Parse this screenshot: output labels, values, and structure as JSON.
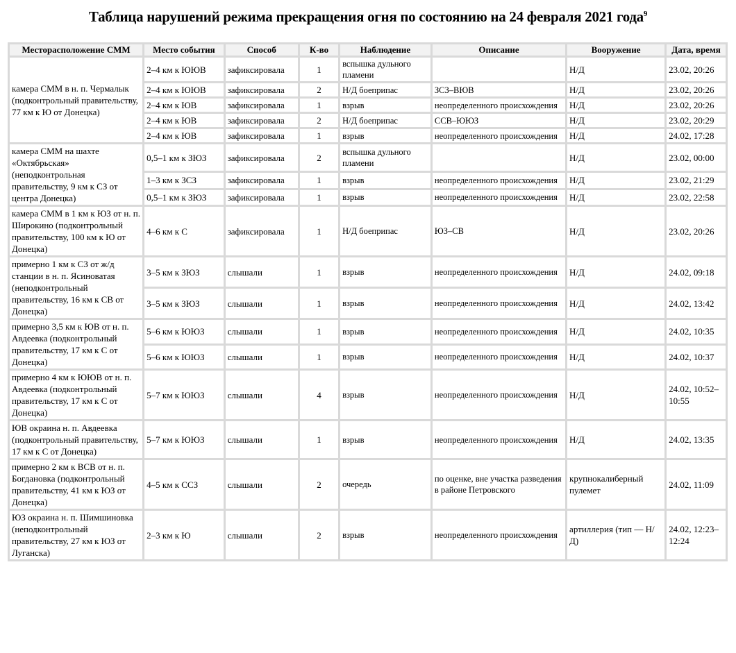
{
  "title": "Таблица нарушений режима прекращения огня по состоянию на 24 февраля 2021 года",
  "footnote": "9",
  "headers": [
    "Месторасположение СММ",
    "Место события",
    "Способ",
    "К-во",
    "Наблюдение",
    "Описание",
    "Вооружение",
    "Дата, время"
  ],
  "groups": [
    {
      "location": "камера СММ в н. п. Чермалык (подконтрольный правительству, 77 км к Ю от Донецка)",
      "events": [
        {
          "place": "2–4 км к ЮЮВ",
          "method": "зафиксировала",
          "qty": "1",
          "observation": "вспышка дульного пламени",
          "description": "",
          "weapon": "Н/Д",
          "datetime": "23.02, 20:26"
        },
        {
          "place": "2–4 км к ЮЮВ",
          "method": "зафиксировала",
          "qty": "2",
          "observation": "Н/Д боеприпас",
          "description": "ЗСЗ–ВЮВ",
          "weapon": "Н/Д",
          "datetime": "23.02, 20:26"
        },
        {
          "place": "2–4 км к ЮВ",
          "method": "зафиксировала",
          "qty": "1",
          "observation": "взрыв",
          "description": "неопределенного происхождения",
          "weapon": "Н/Д",
          "datetime": "23.02, 20:26"
        },
        {
          "place": "2–4 км к ЮВ",
          "method": "зафиксировала",
          "qty": "2",
          "observation": "Н/Д боеприпас",
          "description": "ССВ–ЮЮЗ",
          "weapon": "Н/Д",
          "datetime": "23.02, 20:29"
        },
        {
          "place": "2–4 км к ЮВ",
          "method": "зафиксировала",
          "qty": "1",
          "observation": "взрыв",
          "description": "неопределенного происхождения",
          "weapon": "Н/Д",
          "datetime": "24.02, 17:28"
        }
      ]
    },
    {
      "location": "камера СММ на шахте «Октябрьская» (неподконтрольная правительству, 9 км к СЗ от центра Донецка)",
      "events": [
        {
          "place": "0,5–1 км к ЗЮЗ",
          "method": "зафиксировала",
          "qty": "2",
          "observation": "вспышка дульного пламени",
          "description": "",
          "weapon": "Н/Д",
          "datetime": "23.02, 00:00"
        },
        {
          "place": "1–3 км к ЗСЗ",
          "method": "зафиксировала",
          "qty": "1",
          "observation": "взрыв",
          "description": "неопределенного происхождения",
          "weapon": "Н/Д",
          "datetime": "23.02, 21:29"
        },
        {
          "place": "0,5–1 км к ЗЮЗ",
          "method": "зафиксировала",
          "qty": "1",
          "observation": "взрыв",
          "description": "неопределенного происхождения",
          "weapon": "Н/Д",
          "datetime": "23.02, 22:58"
        }
      ]
    },
    {
      "location": "камера СММ в 1 км к ЮЗ от н. п. Широкино (подконтрольный правительству, 100 км к Ю от Донецка)",
      "events": [
        {
          "place": "4–6 км к С",
          "method": "зафиксировала",
          "qty": "1",
          "observation": "Н/Д боеприпас",
          "description": "ЮЗ–СВ",
          "weapon": "Н/Д",
          "datetime": "23.02, 20:26"
        }
      ]
    },
    {
      "location": "примерно 1 км к СЗ от ж/д станции в н. п. Ясиноватая (неподконтрольный правительству, 16 км к СВ от Донецка)",
      "events": [
        {
          "place": "3–5 км к ЗЮЗ",
          "method": "слышали",
          "qty": "1",
          "observation": "взрыв",
          "description": "неопределенного происхождения",
          "weapon": "Н/Д",
          "datetime": "24.02, 09:18"
        },
        {
          "place": "3–5 км к ЗЮЗ",
          "method": "слышали",
          "qty": "1",
          "observation": "взрыв",
          "description": "неопределенного происхождения",
          "weapon": "Н/Д",
          "datetime": "24.02, 13:42"
        }
      ]
    },
    {
      "location": "примерно 3,5 км к ЮВ от н. п. Авдеевка (подконтрольный правительству, 17 км к С от Донецка)",
      "events": [
        {
          "place": "5–6 км к ЮЮЗ",
          "method": "слышали",
          "qty": "1",
          "observation": "взрыв",
          "description": "неопределенного происхождения",
          "weapon": "Н/Д",
          "datetime": "24.02, 10:35"
        },
        {
          "place": "5–6 км к ЮЮЗ",
          "method": "слышали",
          "qty": "1",
          "observation": "взрыв",
          "description": "неопределенного происхождения",
          "weapon": "Н/Д",
          "datetime": "24.02, 10:37"
        }
      ]
    },
    {
      "location": "примерно 4 км к ЮЮВ от н. п. Авдеевка (подконтрольный правительству, 17 км к С от Донецка)",
      "events": [
        {
          "place": "5–7 км к ЮЮЗ",
          "method": "слышали",
          "qty": "4",
          "observation": "взрыв",
          "description": "неопределенного происхождения",
          "weapon": "Н/Д",
          "datetime": "24.02, 10:52–10:55"
        }
      ]
    },
    {
      "location": "ЮВ окраина н. п. Авдеевка (подконтрольный правительству, 17 км к С от Донецка)",
      "events": [
        {
          "place": "5–7 км к ЮЮЗ",
          "method": "слышали",
          "qty": "1",
          "observation": "взрыв",
          "description": "неопределенного происхождения",
          "weapon": "Н/Д",
          "datetime": "24.02, 13:35"
        }
      ]
    },
    {
      "location": "примерно 2 км к ВСВ от н. п. Богдановка (подконтрольный правительству, 41 км к ЮЗ от Донецка)",
      "events": [
        {
          "place": "4–5 км к ССЗ",
          "method": "слышали",
          "qty": "2",
          "observation": "очередь",
          "description": "по оценке, вне участка разведения в районе Петровского",
          "weapon": "крупнокалиберный пулемет",
          "datetime": "24.02, 11:09"
        }
      ]
    },
    {
      "location": "ЮЗ окраина н. п. Шимшиновка (неподконтрольный правительству, 27 км к ЮЗ от Луганска)",
      "events": [
        {
          "place": "2–3 км к Ю",
          "method": "слышали",
          "qty": "2",
          "observation": "взрыв",
          "description": "неопределенного происхождения",
          "weapon": "артиллерия (тип — Н/Д)",
          "datetime": "24.02, 12:23–12:24"
        }
      ]
    }
  ]
}
